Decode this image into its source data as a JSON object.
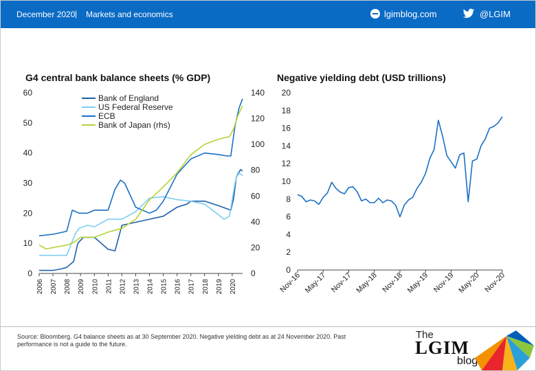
{
  "header": {
    "date": "December 2020",
    "separator": "|",
    "topic": "Markets and economics",
    "site": "lgimblog.com",
    "handle": "@LGIM",
    "icons": [
      "globe-icon",
      "twitter-bird-icon"
    ],
    "bar_color": "#0a6bc5"
  },
  "chart_data": [
    {
      "type": "line",
      "title": "G4 central bank balance sheets (% GDP)",
      "x_ticks": [
        "2006",
        "2007",
        "2008",
        "2009",
        "2010",
        "2011",
        "2012",
        "2013",
        "2014",
        "2015",
        "2016",
        "2017",
        "2018",
        "2019",
        "2020"
      ],
      "xlim": [
        2006,
        2020.75
      ],
      "ylim_left": [
        0,
        60
      ],
      "yticks_left": [
        0,
        10,
        20,
        30,
        40,
        50,
        60
      ],
      "ylim_right": [
        0,
        140
      ],
      "yticks_right": [
        0,
        20,
        40,
        60,
        80,
        100,
        120,
        140
      ],
      "legend_position": "top-left",
      "series": [
        {
          "name": "Bank of England",
          "axis": "left",
          "color": "#1f5fa8",
          "x": [
            2006,
            2007,
            2007.6,
            2008,
            2008.5,
            2008.8,
            2009.2,
            2010,
            2011,
            2011.5,
            2012,
            2013,
            2014,
            2015,
            2016,
            2016.7,
            2017,
            2018,
            2019,
            2019.9,
            2020.1,
            2020.3,
            2020.6,
            2020.75
          ],
          "y": [
            1,
            1,
            1.5,
            2,
            4,
            10,
            12,
            12,
            8,
            7.5,
            16,
            17,
            18,
            19,
            22,
            23,
            24,
            24,
            22.5,
            21,
            25,
            32,
            34.5,
            34
          ]
        },
        {
          "name": "US Federal Reserve",
          "axis": "left",
          "color": "#7dcdf0",
          "x": [
            2006,
            2007,
            2008,
            2008.6,
            2008.9,
            2009.5,
            2010,
            2011,
            2012,
            2013,
            2014,
            2015,
            2016,
            2017,
            2018,
            2019,
            2019.4,
            2019.8,
            2020.2,
            2020.4,
            2020.75
          ],
          "y": [
            6,
            6,
            6,
            13,
            15,
            16,
            15.5,
            18,
            18,
            20.5,
            25,
            25.5,
            24.5,
            24,
            23,
            19.5,
            18,
            19,
            30,
            33.5,
            32.5
          ]
        },
        {
          "name": "ECB",
          "axis": "left",
          "color": "#1a6fc4",
          "x": [
            2006,
            2007,
            2008,
            2008.4,
            2008.9,
            2009.5,
            2010,
            2011,
            2011.5,
            2011.9,
            2012.2,
            2012.6,
            2013,
            2014,
            2014.5,
            2015,
            2016,
            2017,
            2018,
            2019,
            2019.6,
            2019.9,
            2020.2,
            2020.5,
            2020.75
          ],
          "y": [
            12.5,
            13,
            14,
            21,
            20,
            20,
            21,
            21,
            28,
            31,
            30,
            26,
            22,
            20,
            21,
            24,
            33,
            38,
            40,
            39.5,
            39,
            39,
            49,
            55,
            58
          ]
        },
        {
          "name": "Bank of Japan (rhs)",
          "axis": "right",
          "color": "#b6d234",
          "x": [
            2006,
            2006.5,
            2007,
            2008,
            2008.5,
            2009,
            2010,
            2011,
            2012,
            2013,
            2014,
            2015,
            2016,
            2017,
            2018,
            2019,
            2019.8,
            2020.1,
            2020.4,
            2020.75
          ],
          "y": [
            22,
            19,
            20,
            22,
            24,
            28,
            28,
            32,
            35,
            42,
            57,
            67,
            78,
            92,
            100,
            104,
            106,
            112,
            122,
            130
          ]
        }
      ]
    },
    {
      "type": "line",
      "title": "Negative yielding debt (USD trillions)",
      "x_ticks": [
        "Nov-16",
        "May-17",
        "Nov-17",
        "May-18",
        "Nov-18",
        "May-19",
        "Nov-19",
        "May-20",
        "Nov-20"
      ],
      "x_start": "2016-11",
      "x_end": "2020-11",
      "ylim": [
        0,
        20
      ],
      "yticks": [
        0,
        2,
        4,
        6,
        8,
        10,
        12,
        14,
        16,
        18,
        20
      ],
      "series": [
        {
          "name": "",
          "color": "#1a6fc4",
          "x": [
            "2016-11",
            "2016-12",
            "2017-01",
            "2017-02",
            "2017-03",
            "2017-04",
            "2017-05",
            "2017-06",
            "2017-07",
            "2017-08",
            "2017-09",
            "2017-10",
            "2017-11",
            "2017-12",
            "2018-01",
            "2018-02",
            "2018-03",
            "2018-04",
            "2018-05",
            "2018-06",
            "2018-07",
            "2018-08",
            "2018-09",
            "2018-10",
            "2018-11",
            "2018-12",
            "2019-01",
            "2019-02",
            "2019-03",
            "2019-04",
            "2019-05",
            "2019-06",
            "2019-07",
            "2019-08",
            "2019-09",
            "2019-10",
            "2019-11",
            "2019-12",
            "2020-01",
            "2020-02",
            "2020-03",
            "2020-04",
            "2020-05",
            "2020-06",
            "2020-07",
            "2020-08",
            "2020-09",
            "2020-10",
            "2020-11"
          ],
          "y": [
            8.5,
            8.3,
            7.7,
            7.9,
            7.8,
            7.4,
            8.2,
            8.7,
            9.9,
            9.2,
            8.8,
            8.6,
            9.3,
            9.4,
            8.8,
            7.8,
            8.0,
            7.6,
            7.6,
            8.1,
            7.6,
            7.9,
            7.8,
            7.3,
            6.0,
            7.3,
            7.9,
            8.2,
            9.2,
            9.9,
            10.9,
            12.6,
            13.6,
            16.9,
            15.1,
            12.9,
            12.2,
            11.5,
            13.0,
            13.2,
            7.7,
            12.3,
            12.5,
            14.0,
            14.8,
            16.0,
            16.2,
            16.6,
            17.3
          ]
        }
      ]
    }
  ],
  "footer": {
    "source": "Source: Bloomberg. G4 balance sheets as at 30 September 2020. Negative yielding debt as at 24 November 2020. Past performance is not a guide to the future.",
    "logo_the": "The",
    "logo_main": "LGIM",
    "logo_blog": "blog"
  }
}
